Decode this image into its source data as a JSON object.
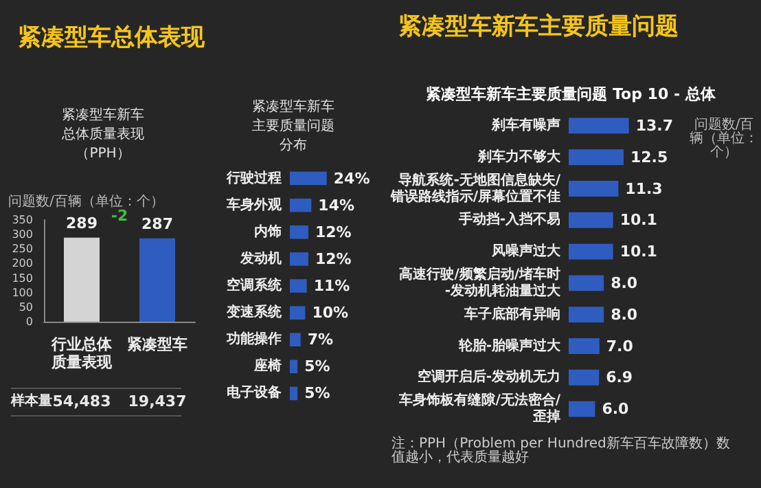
{
  "chart_data": [
    {
      "type": "bar",
      "title": "紧凑型车总体表现",
      "subtitle": "紧凑型车新车总体质量表现（PPH）",
      "ylabel": "问题数/百辆（单位：个）",
      "categories": [
        "行业总体质量表现",
        "紧凑型车"
      ],
      "values": [
        289,
        287
      ],
      "colors": [
        "#d4d4d4",
        "#2f5cbf"
      ],
      "ylim": [
        0,
        350
      ],
      "yticks": [
        0,
        50,
        100,
        150,
        200,
        250,
        300,
        350
      ],
      "data_labels": true,
      "annotations": [
        "-2",
        "样本量",
        "54,483",
        "19,437"
      ]
    },
    {
      "type": "bar",
      "orientation": "horizontal",
      "title": "紧凑型车新车主要质量问题分布",
      "tick_labels": "y",
      "categories": [
        "行驶过程",
        "车身外观",
        "内饰",
        "发动机",
        "空调系统",
        "变速系统",
        "功能操作",
        "座椅",
        "电子设备"
      ],
      "values": [
        24,
        14,
        12,
        12,
        11,
        10,
        7,
        5,
        5
      ],
      "color": "#2f5cbf",
      "value_labels": [
        "24%",
        "14%",
        "12%",
        "12%",
        "11%",
        "10%",
        "7%",
        "5%",
        "5%"
      ]
    },
    {
      "type": "bar",
      "orientation": "horizontal",
      "title": "紧凑型车新车主要质量问题",
      "subtitle": "紧凑型车新车主要质量问题 Top 10 - 总体",
      "tick_labels": "y",
      "categories": [
        "刹车有噪声",
        "刹车力不够大",
        "导航系统-无地图信息缺失/错误路线指示/屏幕位置不佳",
        "手动挡-入挡不易",
        "风噪声过大",
        "高速行驶/频繁启动/堵车时-发动机耗油量过大",
        "车子底部有异响",
        "轮胎-胎噪声过大",
        "空调开启后-发动机无力",
        "车身饰板有缝隙/无法密合/歪掉"
      ],
      "values": [
        13.7,
        12.5,
        11.3,
        10.1,
        10.1,
        8.0,
        8.0,
        7.0,
        6.9,
        6.0
      ],
      "color": "#2f5cbf",
      "value_labels": [
        "13.7",
        "12.5",
        "11.3",
        "10.1",
        "10.1",
        "8.0",
        "8.0",
        "7.0",
        "6.9",
        "6.0"
      ],
      "annotations": [
        "问题数/百辆（单位：个）",
        "注：PPH（Problem per Hundred新车百车故障数）数值越小，代表质量越好"
      ]
    }
  ]
}
